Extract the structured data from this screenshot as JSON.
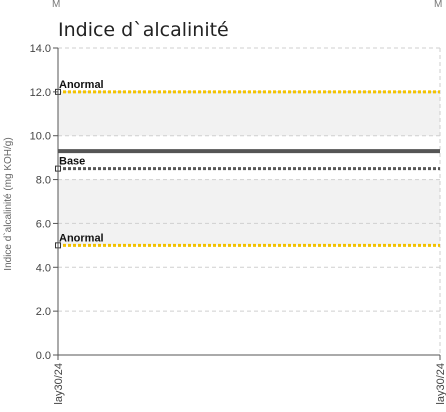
{
  "top_marks": [
    "M",
    "M"
  ],
  "chart_data": {
    "type": "line",
    "title": "Indice d`alcalinité",
    "ylabel": "Indice d`alcalinité (mg KOH/g)",
    "xlabel": "",
    "ylim": [
      0,
      14
    ],
    "yticks": [
      "0.0",
      "2.0",
      "4.0",
      "6.0",
      "8.0",
      "10.0",
      "12.0",
      "14.0"
    ],
    "x": [
      "lay30/24",
      "lay30/24"
    ],
    "grid": true,
    "series": [
      {
        "values": [
          9.3,
          9.3
        ],
        "color": "#555555"
      }
    ],
    "reference_lines": [
      {
        "label": "Anormal",
        "value": 12.0,
        "color": "#f2c200"
      },
      {
        "label": "Base",
        "value": 8.5,
        "color": "#555555"
      },
      {
        "label": "Anormal",
        "value": 5.0,
        "color": "#f2c200"
      }
    ],
    "bands": [
      {
        "from": 10.0,
        "to": 12.0,
        "color": "#f2f2f2"
      },
      {
        "from": 5.0,
        "to": 8.0,
        "color": "#f2f2f2"
      }
    ]
  }
}
